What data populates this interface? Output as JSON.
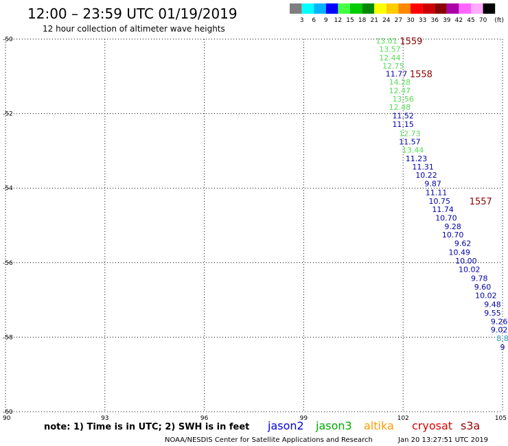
{
  "header": {
    "title": "12:00 – 23:59 UTC 01/19/2019",
    "subtitle": "12 hour collection of altimeter wave heights"
  },
  "legend": {
    "colors": [
      "#7f7f7f",
      "#00ffff",
      "#00b4ff",
      "#0000ff",
      "#44ff44",
      "#00cc00",
      "#008800",
      "#ffff00",
      "#ffcc00",
      "#ff8800",
      "#ff0000",
      "#cc0000",
      "#880000",
      "#aa00aa",
      "#ff66ff",
      "#ffaaff",
      "#000000"
    ],
    "labels": [
      "3",
      "6",
      "9",
      "12",
      "15",
      "18",
      "21",
      "24",
      "27",
      "30",
      "33",
      "36",
      "39",
      "42",
      "45",
      "70",
      "(ft)"
    ]
  },
  "chart_data": {
    "type": "scatter",
    "xlim": [
      90,
      105
    ],
    "ylim": [
      -60,
      -50
    ],
    "x_ticks": [
      "90",
      "93",
      "96",
      "99",
      "102",
      "105"
    ],
    "y_ticks": [
      "-50",
      "-52",
      "-54",
      "-56",
      "-58",
      "-60"
    ],
    "grid": true,
    "series": [
      {
        "name": "jason3",
        "color": "#55dd55",
        "points": [
          {
            "lon": 101.5,
            "lat": -50.05,
            "label": "13.01"
          },
          {
            "lon": 101.6,
            "lat": -50.27,
            "label": "13.57"
          },
          {
            "lon": 101.6,
            "lat": -50.5,
            "label": "12.44"
          },
          {
            "lon": 101.7,
            "lat": -50.72,
            "label": "12.75"
          },
          {
            "lon": 101.9,
            "lat": -51.15,
            "label": "14.28"
          },
          {
            "lon": 101.9,
            "lat": -51.38,
            "label": "12.47"
          },
          {
            "lon": 102.0,
            "lat": -51.6,
            "label": "13.56"
          },
          {
            "lon": 101.9,
            "lat": -51.82,
            "label": "12.48"
          },
          {
            "lon": 102.2,
            "lat": -52.53,
            "label": "12.73"
          },
          {
            "lon": 102.3,
            "lat": -52.97,
            "label": "13.44"
          }
        ]
      },
      {
        "name": "jason2",
        "color": "#0000aa",
        "points": [
          {
            "lon": 101.8,
            "lat": -50.93,
            "label": "11.77"
          },
          {
            "lon": 102.0,
            "lat": -52.05,
            "label": "11.52"
          },
          {
            "lon": 102.0,
            "lat": -52.28,
            "label": "11.15"
          },
          {
            "lon": 102.2,
            "lat": -52.75,
            "label": "11.57"
          },
          {
            "lon": 102.4,
            "lat": -53.2,
            "label": "11.23"
          },
          {
            "lon": 102.6,
            "lat": -53.43,
            "label": "11.31"
          },
          {
            "lon": 102.7,
            "lat": -53.65,
            "label": "10.22"
          },
          {
            "lon": 102.9,
            "lat": -53.88,
            "label": "9.87"
          },
          {
            "lon": 103.0,
            "lat": -54.12,
            "label": "11.11"
          },
          {
            "lon": 103.1,
            "lat": -54.35,
            "label": "10.75"
          },
          {
            "lon": 103.2,
            "lat": -54.57,
            "label": "11.74"
          },
          {
            "lon": 103.3,
            "lat": -54.8,
            "label": "10.70"
          },
          {
            "lon": 103.5,
            "lat": -55.03,
            "label": "9.28"
          },
          {
            "lon": 103.5,
            "lat": -55.25,
            "label": "10.70"
          },
          {
            "lon": 103.8,
            "lat": -55.48,
            "label": "9.62"
          },
          {
            "lon": 103.7,
            "lat": -55.72,
            "label": "10.49"
          },
          {
            "lon": 103.9,
            "lat": -55.95,
            "label": "10.00"
          },
          {
            "lon": 104.0,
            "lat": -56.18,
            "label": "10.02"
          },
          {
            "lon": 104.3,
            "lat": -56.42,
            "label": "9.78"
          },
          {
            "lon": 104.4,
            "lat": -56.65,
            "label": "9.60"
          },
          {
            "lon": 104.5,
            "lat": -56.88,
            "label": "10.02"
          },
          {
            "lon": 104.7,
            "lat": -57.12,
            "label": "9.48"
          },
          {
            "lon": 104.7,
            "lat": -57.35,
            "label": "9.55"
          },
          {
            "lon": 104.9,
            "lat": -57.58,
            "label": "9.26"
          },
          {
            "lon": 104.9,
            "lat": -57.8,
            "label": "9.02"
          },
          {
            "lon": 105.0,
            "lat": -58.27,
            "label": "9"
          }
        ]
      },
      {
        "name": "",
        "color": "#2299bb",
        "points": [
          {
            "lon": 105.0,
            "lat": -58.03,
            "label": "8.8"
          }
        ]
      }
    ],
    "pass_labels": [
      {
        "lon": 101.9,
        "lat": -50.05,
        "label": "1559"
      },
      {
        "lon": 102.2,
        "lat": -50.93,
        "label": "1558"
      },
      {
        "lon": 104.0,
        "lat": -54.35,
        "label": "1557"
      }
    ],
    "pass_label_color": "#880000"
  },
  "footer": {
    "note": "note: 1) Time is in UTC; 2) SWH is in feet",
    "satellites": [
      {
        "name": "jason2",
        "color": "#0000dd"
      },
      {
        "name": "jason3",
        "color": "#00aa00"
      },
      {
        "name": "altika",
        "color": "#ff9900"
      },
      {
        "name": "cryosat",
        "color": "#dd0000"
      },
      {
        "name": "s3a",
        "color": "#990000"
      }
    ],
    "credit": "NOAA/NESDIS Center for Satellite Applications and Research",
    "timestamp": "Jan 20 13:27:51 UTC 2019"
  }
}
